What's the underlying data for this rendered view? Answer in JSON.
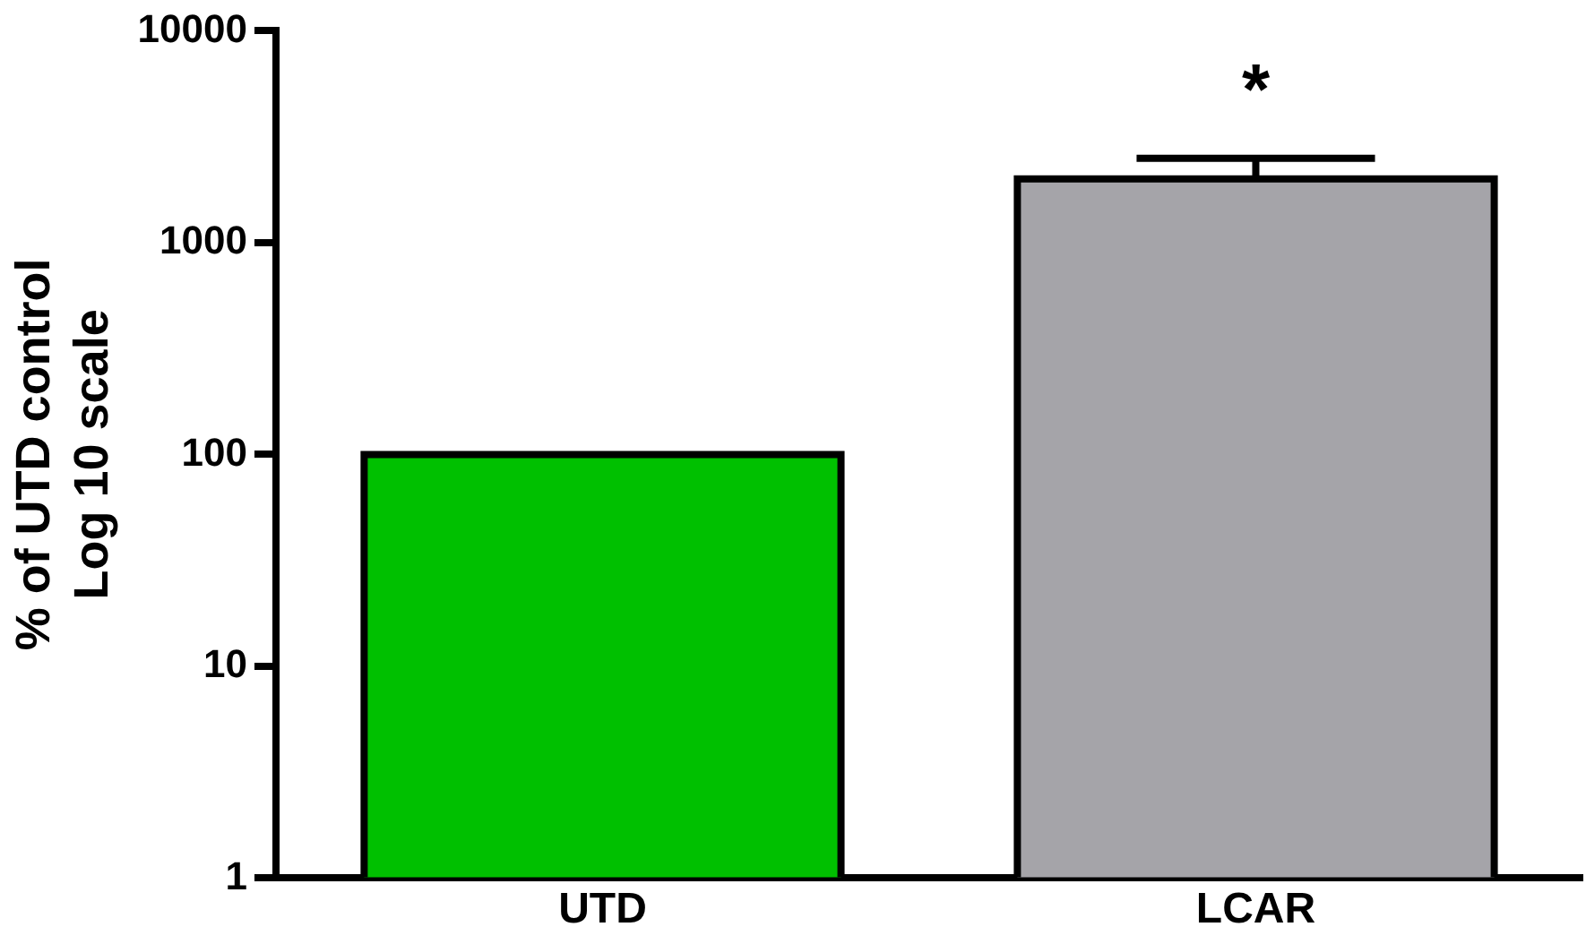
{
  "chart_data": {
    "type": "bar",
    "ylabel": "% of UTD control\nLog 10 scale",
    "categories": [
      "UTD",
      "LCAR"
    ],
    "values": [
      100,
      2000
    ],
    "colors": [
      "#00c000",
      "#a5a4a9"
    ],
    "errors": [
      null,
      [
        2000,
        2500
      ]
    ],
    "log": true,
    "ylim": [
      1,
      10000
    ],
    "yticks": [
      1,
      10,
      100,
      1000,
      10000
    ],
    "grid": false,
    "legend": false,
    "annotations": [
      "*"
    ]
  }
}
